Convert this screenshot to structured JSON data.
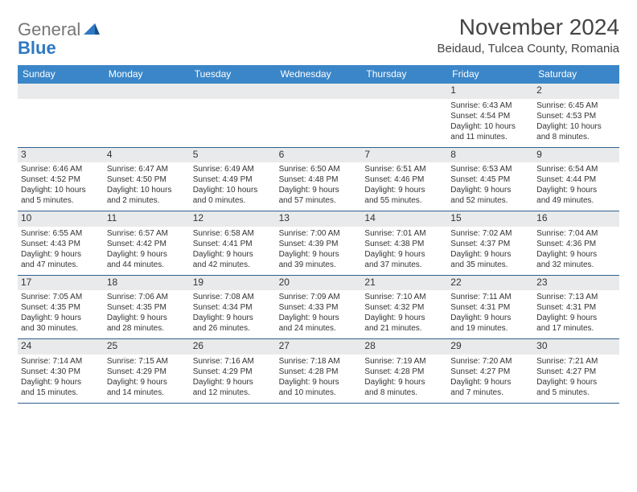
{
  "logo": {
    "text1": "General",
    "text2": "Blue"
  },
  "title": "November 2024",
  "location": "Beidaud, Tulcea County, Romania",
  "colors": {
    "header_bg": "#3b86c8",
    "header_text": "#ffffff",
    "daynum_bg": "#e9eaeb",
    "week_border": "#2f5f8f",
    "body_text": "#333333",
    "logo_gray": "#777777",
    "logo_blue": "#2f78c2"
  },
  "typography": {
    "title_fontsize": 28,
    "location_fontsize": 15,
    "dayhead_fontsize": 12,
    "daynum_fontsize": 12,
    "cell_fontsize": 10
  },
  "day_labels": [
    "Sunday",
    "Monday",
    "Tuesday",
    "Wednesday",
    "Thursday",
    "Friday",
    "Saturday"
  ],
  "weeks": [
    [
      {
        "empty": true
      },
      {
        "empty": true
      },
      {
        "empty": true
      },
      {
        "empty": true
      },
      {
        "empty": true
      },
      {
        "n": "1",
        "sr": "Sunrise: 6:43 AM",
        "ss": "Sunset: 4:54 PM",
        "d1": "Daylight: 10 hours",
        "d2": "and 11 minutes."
      },
      {
        "n": "2",
        "sr": "Sunrise: 6:45 AM",
        "ss": "Sunset: 4:53 PM",
        "d1": "Daylight: 10 hours",
        "d2": "and 8 minutes."
      }
    ],
    [
      {
        "n": "3",
        "sr": "Sunrise: 6:46 AM",
        "ss": "Sunset: 4:52 PM",
        "d1": "Daylight: 10 hours",
        "d2": "and 5 minutes."
      },
      {
        "n": "4",
        "sr": "Sunrise: 6:47 AM",
        "ss": "Sunset: 4:50 PM",
        "d1": "Daylight: 10 hours",
        "d2": "and 2 minutes."
      },
      {
        "n": "5",
        "sr": "Sunrise: 6:49 AM",
        "ss": "Sunset: 4:49 PM",
        "d1": "Daylight: 10 hours",
        "d2": "and 0 minutes."
      },
      {
        "n": "6",
        "sr": "Sunrise: 6:50 AM",
        "ss": "Sunset: 4:48 PM",
        "d1": "Daylight: 9 hours",
        "d2": "and 57 minutes."
      },
      {
        "n": "7",
        "sr": "Sunrise: 6:51 AM",
        "ss": "Sunset: 4:46 PM",
        "d1": "Daylight: 9 hours",
        "d2": "and 55 minutes."
      },
      {
        "n": "8",
        "sr": "Sunrise: 6:53 AM",
        "ss": "Sunset: 4:45 PM",
        "d1": "Daylight: 9 hours",
        "d2": "and 52 minutes."
      },
      {
        "n": "9",
        "sr": "Sunrise: 6:54 AM",
        "ss": "Sunset: 4:44 PM",
        "d1": "Daylight: 9 hours",
        "d2": "and 49 minutes."
      }
    ],
    [
      {
        "n": "10",
        "sr": "Sunrise: 6:55 AM",
        "ss": "Sunset: 4:43 PM",
        "d1": "Daylight: 9 hours",
        "d2": "and 47 minutes."
      },
      {
        "n": "11",
        "sr": "Sunrise: 6:57 AM",
        "ss": "Sunset: 4:42 PM",
        "d1": "Daylight: 9 hours",
        "d2": "and 44 minutes."
      },
      {
        "n": "12",
        "sr": "Sunrise: 6:58 AM",
        "ss": "Sunset: 4:41 PM",
        "d1": "Daylight: 9 hours",
        "d2": "and 42 minutes."
      },
      {
        "n": "13",
        "sr": "Sunrise: 7:00 AM",
        "ss": "Sunset: 4:39 PM",
        "d1": "Daylight: 9 hours",
        "d2": "and 39 minutes."
      },
      {
        "n": "14",
        "sr": "Sunrise: 7:01 AM",
        "ss": "Sunset: 4:38 PM",
        "d1": "Daylight: 9 hours",
        "d2": "and 37 minutes."
      },
      {
        "n": "15",
        "sr": "Sunrise: 7:02 AM",
        "ss": "Sunset: 4:37 PM",
        "d1": "Daylight: 9 hours",
        "d2": "and 35 minutes."
      },
      {
        "n": "16",
        "sr": "Sunrise: 7:04 AM",
        "ss": "Sunset: 4:36 PM",
        "d1": "Daylight: 9 hours",
        "d2": "and 32 minutes."
      }
    ],
    [
      {
        "n": "17",
        "sr": "Sunrise: 7:05 AM",
        "ss": "Sunset: 4:35 PM",
        "d1": "Daylight: 9 hours",
        "d2": "and 30 minutes."
      },
      {
        "n": "18",
        "sr": "Sunrise: 7:06 AM",
        "ss": "Sunset: 4:35 PM",
        "d1": "Daylight: 9 hours",
        "d2": "and 28 minutes."
      },
      {
        "n": "19",
        "sr": "Sunrise: 7:08 AM",
        "ss": "Sunset: 4:34 PM",
        "d1": "Daylight: 9 hours",
        "d2": "and 26 minutes."
      },
      {
        "n": "20",
        "sr": "Sunrise: 7:09 AM",
        "ss": "Sunset: 4:33 PM",
        "d1": "Daylight: 9 hours",
        "d2": "and 24 minutes."
      },
      {
        "n": "21",
        "sr": "Sunrise: 7:10 AM",
        "ss": "Sunset: 4:32 PM",
        "d1": "Daylight: 9 hours",
        "d2": "and 21 minutes."
      },
      {
        "n": "22",
        "sr": "Sunrise: 7:11 AM",
        "ss": "Sunset: 4:31 PM",
        "d1": "Daylight: 9 hours",
        "d2": "and 19 minutes."
      },
      {
        "n": "23",
        "sr": "Sunrise: 7:13 AM",
        "ss": "Sunset: 4:31 PM",
        "d1": "Daylight: 9 hours",
        "d2": "and 17 minutes."
      }
    ],
    [
      {
        "n": "24",
        "sr": "Sunrise: 7:14 AM",
        "ss": "Sunset: 4:30 PM",
        "d1": "Daylight: 9 hours",
        "d2": "and 15 minutes."
      },
      {
        "n": "25",
        "sr": "Sunrise: 7:15 AM",
        "ss": "Sunset: 4:29 PM",
        "d1": "Daylight: 9 hours",
        "d2": "and 14 minutes."
      },
      {
        "n": "26",
        "sr": "Sunrise: 7:16 AM",
        "ss": "Sunset: 4:29 PM",
        "d1": "Daylight: 9 hours",
        "d2": "and 12 minutes."
      },
      {
        "n": "27",
        "sr": "Sunrise: 7:18 AM",
        "ss": "Sunset: 4:28 PM",
        "d1": "Daylight: 9 hours",
        "d2": "and 10 minutes."
      },
      {
        "n": "28",
        "sr": "Sunrise: 7:19 AM",
        "ss": "Sunset: 4:28 PM",
        "d1": "Daylight: 9 hours",
        "d2": "and 8 minutes."
      },
      {
        "n": "29",
        "sr": "Sunrise: 7:20 AM",
        "ss": "Sunset: 4:27 PM",
        "d1": "Daylight: 9 hours",
        "d2": "and 7 minutes."
      },
      {
        "n": "30",
        "sr": "Sunrise: 7:21 AM",
        "ss": "Sunset: 4:27 PM",
        "d1": "Daylight: 9 hours",
        "d2": "and 5 minutes."
      }
    ]
  ]
}
